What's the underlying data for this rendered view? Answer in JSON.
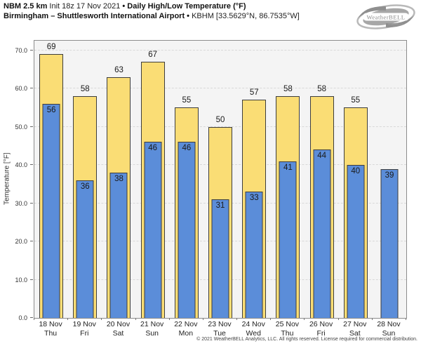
{
  "header": {
    "line1_model": "NBM 2.5 km",
    "line1_init": " Init 18z 17 Nov 2021 ",
    "line1_sep": "• ",
    "line1_product": "Daily High/Low Temperature (°F)",
    "line2_station": "Birmingham – Shuttlesworth International Airport ",
    "line2_sep": "• ",
    "line2_id": "KBHM [33.5629°N, 86.7535°W]"
  },
  "logo": {
    "name": "WeatherBELL",
    "sub": "Analytics LLC"
  },
  "chart_data": {
    "type": "bar",
    "title": "Daily High/Low Temperature (°F)",
    "xlabel": "",
    "ylabel": "Temperature [°F]",
    "ylim": [
      0,
      72.5
    ],
    "grid": "horizontal-dashed",
    "legend_position": "none",
    "plot_bg": "#f4f4f4",
    "yticks": [
      {
        "label": "0.0",
        "value": 0
      },
      {
        "label": "10.0",
        "value": 10
      },
      {
        "label": "20.0",
        "value": 20
      },
      {
        "label": "30.0",
        "value": 30
      },
      {
        "label": "40.0",
        "value": 40
      },
      {
        "label": "50.0",
        "value": 50
      },
      {
        "label": "60.0",
        "value": 60
      },
      {
        "label": "70.0",
        "value": 70
      }
    ],
    "categories": [
      {
        "date": "18 Nov",
        "dow": "Thu"
      },
      {
        "date": "19 Nov",
        "dow": "Fri"
      },
      {
        "date": "20 Nov",
        "dow": "Sat"
      },
      {
        "date": "21 Nov",
        "dow": "Sun"
      },
      {
        "date": "22 Nov",
        "dow": "Mon"
      },
      {
        "date": "23 Nov",
        "dow": "Tue"
      },
      {
        "date": "24 Nov",
        "dow": "Wed"
      },
      {
        "date": "25 Nov",
        "dow": "Thu"
      },
      {
        "date": "26 Nov",
        "dow": "Fri"
      },
      {
        "date": "27 Nov",
        "dow": "Sat"
      },
      {
        "date": "28 Nov",
        "dow": "Sun"
      }
    ],
    "series": [
      {
        "name": "Daily High",
        "color": "#FADD75",
        "border": "#3D3D3D",
        "values": [
          69,
          58,
          63,
          67,
          55,
          50,
          57,
          58,
          58,
          55,
          null
        ]
      },
      {
        "name": "Daily Low",
        "color": "#5B8DD9",
        "border": "#3D3D3D",
        "values": [
          56,
          36,
          38,
          46,
          46,
          31,
          33,
          41,
          44,
          40,
          39
        ]
      }
    ]
  },
  "footer": {
    "copyright": "© 2021 WeatherBELL Analytics, LLC. All rights reserved. License required for commercial distribution."
  }
}
